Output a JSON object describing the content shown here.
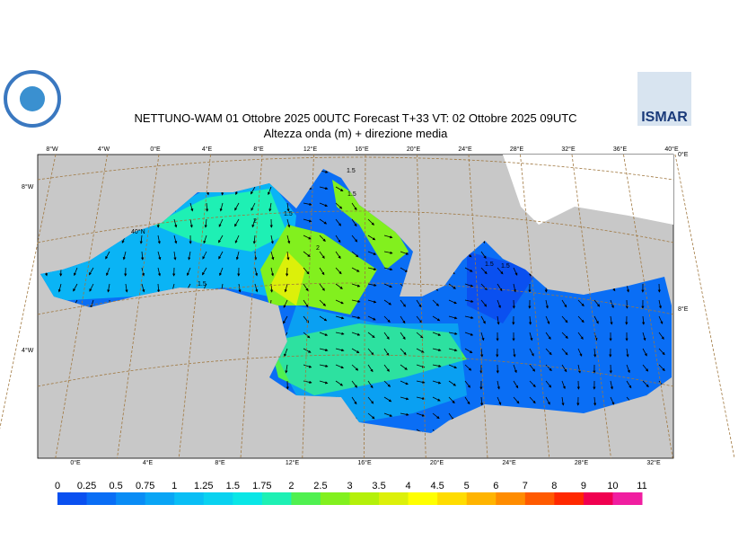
{
  "header": {
    "title": "NETTUNO-WAM  01  Ottobre  2025 00UTC Forecast T+33 VT: 02  Ottobre  2025 09UTC",
    "subtitle": "Altezza onda (m) + direzione media",
    "logo_text": "ISMAR"
  },
  "map": {
    "top_labels": [
      "8°W",
      "4°W",
      "0°E",
      "4°E",
      "8°E",
      "12°E",
      "16°E",
      "20°E",
      "24°E",
      "28°E",
      "32°E",
      "36°E",
      "40°E"
    ],
    "bottom_labels": [
      "0°E",
      "4°E",
      "8°E",
      "12°E",
      "16°E",
      "20°E",
      "24°E",
      "28°E",
      "32°E"
    ],
    "left_labels": [
      "8°W",
      "40°N",
      "4°W"
    ],
    "right_labels": [
      "0°E",
      "8°E"
    ],
    "contour_labels": [
      "1.5",
      "1.5",
      "2",
      "1.5",
      "1.5",
      "2",
      "1.5",
      "1.5"
    ]
  },
  "colorbar": {
    "labels": [
      "0",
      "0.25",
      "0.5",
      "0.75",
      "1",
      "1.25",
      "1.5",
      "1.75",
      "2",
      "2.5",
      "3",
      "3.5",
      "4",
      "4.5",
      "5",
      "6",
      "7",
      "8",
      "9",
      "10",
      "11"
    ],
    "colors": [
      "#0a50f0",
      "#0a6ef5",
      "#0a8cf5",
      "#0aa5f5",
      "#0abef5",
      "#0ad2f0",
      "#0ae6e6",
      "#1ef0b4",
      "#50f050",
      "#82f01e",
      "#b4f00a",
      "#dcf00a",
      "#ffff00",
      "#ffdc00",
      "#ffb400",
      "#ff8c00",
      "#ff5a00",
      "#ff2800",
      "#f00050",
      "#f01ea0"
    ]
  }
}
